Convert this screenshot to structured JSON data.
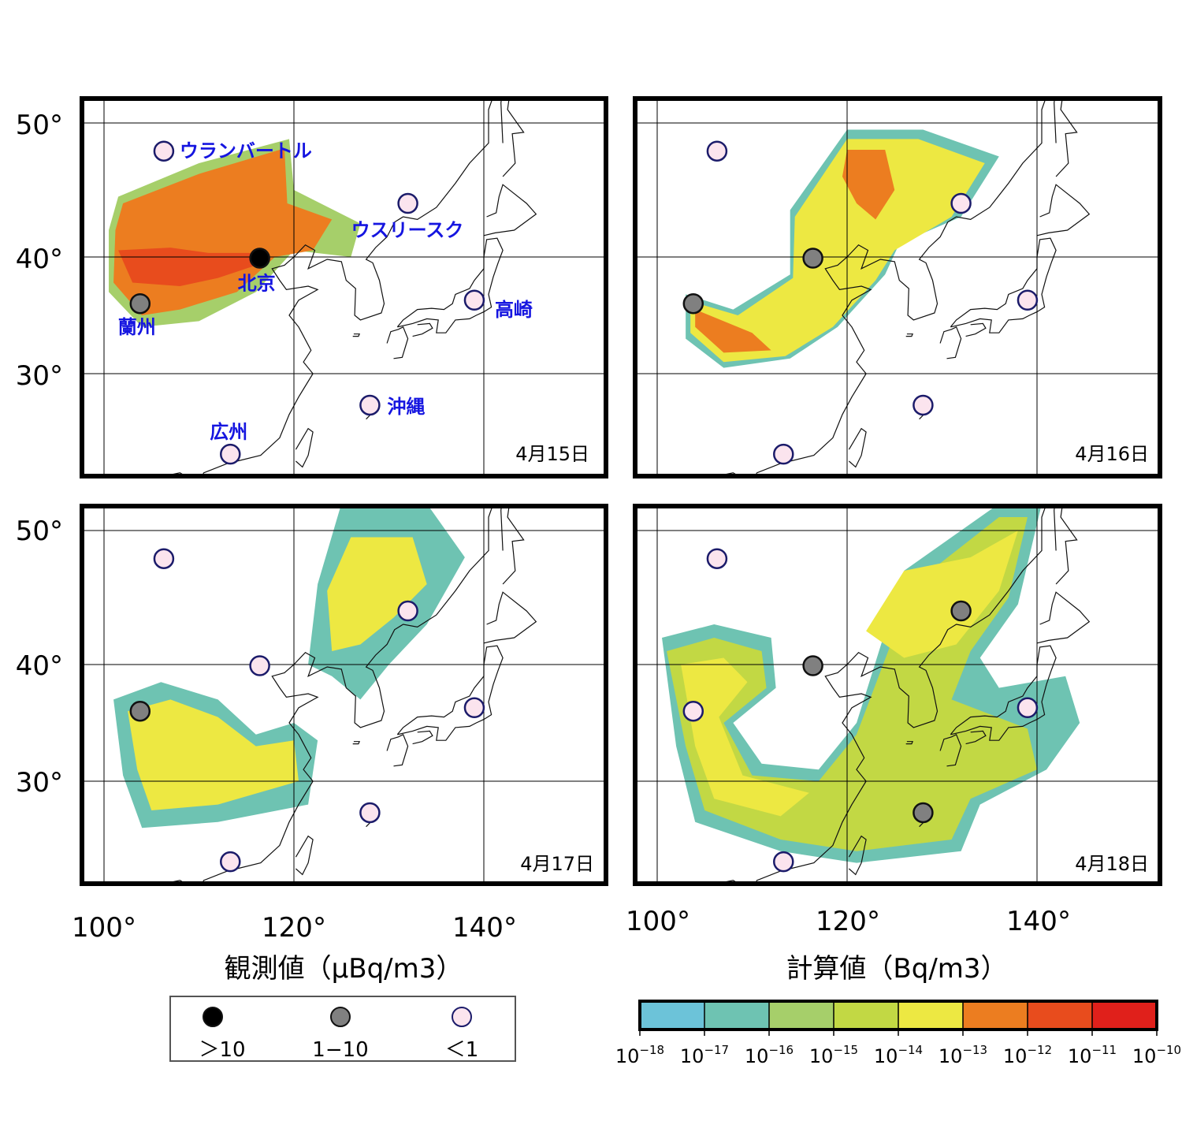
{
  "figure": {
    "y_axis_labels": [
      "50°",
      "40°",
      "30°"
    ],
    "x_axis_labels": [
      "100°",
      "120°",
      "140°"
    ],
    "left_xlabel": "観測値（μBq/m3）",
    "right_xlabel": "計算値（Bq/m3）"
  },
  "panels": [
    {
      "id": "p15",
      "date": "4月15日",
      "stations": [
        {
          "lon": 106.3,
          "lat": 47.9,
          "class": "<1",
          "label": "ウランバートル"
        },
        {
          "lon": 132.0,
          "lat": 44.0,
          "class": "<1",
          "label": "ウスリースク"
        },
        {
          "lon": 116.4,
          "lat": 39.9,
          "class": ">10",
          "label": "北京"
        },
        {
          "lon": 103.8,
          "lat": 36.0,
          "class": "1-10",
          "label": "蘭州"
        },
        {
          "lon": 139.0,
          "lat": 36.3,
          "class": "<1",
          "label": "高崎"
        },
        {
          "lon": 128.0,
          "lat": 27.3,
          "class": "<1",
          "label": "沖縄"
        },
        {
          "lon": 113.3,
          "lat": 23.1,
          "class": "<1",
          "label": "広州"
        }
      ]
    },
    {
      "id": "p16",
      "date": "4月16日",
      "stations": [
        {
          "lon": 106.3,
          "lat": 47.9,
          "class": "<1"
        },
        {
          "lon": 132.0,
          "lat": 44.0,
          "class": "<1"
        },
        {
          "lon": 116.4,
          "lat": 39.9,
          "class": "1-10"
        },
        {
          "lon": 103.8,
          "lat": 36.0,
          "class": "1-10"
        },
        {
          "lon": 139.0,
          "lat": 36.3,
          "class": "<1"
        },
        {
          "lon": 128.0,
          "lat": 27.3,
          "class": "<1"
        },
        {
          "lon": 113.3,
          "lat": 23.1,
          "class": "<1"
        }
      ]
    },
    {
      "id": "p17",
      "date": "4月17日",
      "stations": [
        {
          "lon": 106.3,
          "lat": 47.9,
          "class": "<1"
        },
        {
          "lon": 132.0,
          "lat": 44.0,
          "class": "<1"
        },
        {
          "lon": 116.4,
          "lat": 39.9,
          "class": "<1"
        },
        {
          "lon": 103.8,
          "lat": 36.0,
          "class": "1-10"
        },
        {
          "lon": 139.0,
          "lat": 36.3,
          "class": "<1"
        },
        {
          "lon": 128.0,
          "lat": 27.3,
          "class": "<1"
        },
        {
          "lon": 113.3,
          "lat": 23.1,
          "class": "<1"
        }
      ]
    },
    {
      "id": "p18",
      "date": "4月18日",
      "stations": [
        {
          "lon": 106.3,
          "lat": 47.9,
          "class": "<1"
        },
        {
          "lon": 132.0,
          "lat": 44.0,
          "class": "1-10"
        },
        {
          "lon": 116.4,
          "lat": 39.9,
          "class": "1-10"
        },
        {
          "lon": 103.8,
          "lat": 36.0,
          "class": "<1"
        },
        {
          "lon": 139.0,
          "lat": 36.3,
          "class": "<1"
        },
        {
          "lon": 128.0,
          "lat": 27.3,
          "class": "1-10"
        },
        {
          "lon": 113.3,
          "lat": 23.1,
          "class": "<1"
        }
      ]
    }
  ],
  "observation_legend": {
    "items": [
      {
        "class": ">10",
        "label": "＞10",
        "color": "#000000"
      },
      {
        "class": "1-10",
        "label": "1−10",
        "color": "#808080"
      },
      {
        "class": "<1",
        "label": "＜1",
        "color": "#fbe4ee"
      }
    ]
  },
  "colorbar": {
    "colors": [
      "#6cc3d9",
      "#6ec3b2",
      "#a6cf6a",
      "#c2d844",
      "#ede842",
      "#ec7d20",
      "#e84c1d",
      "#e0201b"
    ],
    "tick_labels": [
      "10−18",
      "10−17",
      "10−16",
      "10−15",
      "10−14",
      "10−13",
      "10−12",
      "10−11",
      "10−10"
    ]
  },
  "plumes": {
    "p15": [
      {
        "level": 2,
        "pts": [
          [
            101.5,
            44.5
          ],
          [
            110,
            47
          ],
          [
            119.5,
            48.8
          ],
          [
            120,
            45
          ],
          [
            127,
            42.5
          ],
          [
            126,
            40
          ],
          [
            120,
            40.5
          ],
          [
            116,
            37
          ],
          [
            110,
            34.5
          ],
          [
            104,
            34
          ],
          [
            100.5,
            37
          ],
          [
            100.5,
            42
          ]
        ]
      },
      {
        "level": 5,
        "pts": [
          [
            102,
            44
          ],
          [
            110,
            46.2
          ],
          [
            119,
            48.1
          ],
          [
            119.3,
            44
          ],
          [
            124,
            42.8
          ],
          [
            122,
            40.5
          ],
          [
            118,
            40
          ],
          [
            114,
            37
          ],
          [
            108,
            35.5
          ],
          [
            104,
            35
          ],
          [
            101,
            37.8
          ],
          [
            101.2,
            42
          ]
        ]
      },
      {
        "level": 6,
        "pts": [
          [
            101.5,
            40.5
          ],
          [
            107,
            40.7
          ],
          [
            111,
            40.3
          ],
          [
            116,
            40.3
          ],
          [
            116.8,
            39.5
          ],
          [
            112,
            38.2
          ],
          [
            108,
            37.5
          ],
          [
            103,
            37.8
          ]
        ]
      }
    ],
    "p16": [
      {
        "level": 1,
        "pts": [
          [
            103,
            36.8
          ],
          [
            108,
            35.5
          ],
          [
            114,
            38.5
          ],
          [
            114,
            43.5
          ],
          [
            120,
            49.5
          ],
          [
            128,
            49.5
          ],
          [
            136,
            47.5
          ],
          [
            132,
            43
          ],
          [
            125.5,
            41
          ],
          [
            124,
            38.5
          ],
          [
            119,
            34
          ],
          [
            114,
            31.3
          ],
          [
            107,
            30.5
          ],
          [
            103,
            33
          ]
        ]
      },
      {
        "level": 4,
        "pts": [
          [
            103.5,
            36.2
          ],
          [
            108.5,
            35
          ],
          [
            114.3,
            38.2
          ],
          [
            114.5,
            43
          ],
          [
            120,
            48.8
          ],
          [
            127.5,
            48.8
          ],
          [
            134.5,
            47
          ],
          [
            131,
            43
          ],
          [
            125,
            40.5
          ],
          [
            123,
            38
          ],
          [
            118.5,
            34
          ],
          [
            113.5,
            31.5
          ],
          [
            107,
            31
          ],
          [
            103.5,
            33.5
          ]
        ]
      },
      {
        "level": 5,
        "pts": [
          [
            120,
            48
          ],
          [
            124,
            48
          ],
          [
            125,
            45
          ],
          [
            123,
            42.8
          ],
          [
            121,
            44
          ],
          [
            119.5,
            46
          ]
        ]
      },
      {
        "level": 5,
        "pts": [
          [
            104,
            35.5
          ],
          [
            110,
            33.5
          ],
          [
            112,
            32
          ],
          [
            107,
            31.8
          ],
          [
            104,
            34
          ]
        ]
      }
    ],
    "p17": [
      {
        "level": 1,
        "pts": [
          [
            101,
            37
          ],
          [
            106,
            38.5
          ],
          [
            112,
            37
          ],
          [
            116,
            34
          ],
          [
            120,
            35
          ],
          [
            122.5,
            33.5
          ],
          [
            121.5,
            28
          ],
          [
            112,
            26.5
          ],
          [
            104,
            26
          ],
          [
            102,
            30.5
          ]
        ]
      },
      {
        "level": 4,
        "pts": [
          [
            102.5,
            36
          ],
          [
            107,
            37
          ],
          [
            112,
            35.5
          ],
          [
            116,
            33
          ],
          [
            120,
            33.5
          ],
          [
            120.5,
            30
          ],
          [
            112,
            28
          ],
          [
            105,
            27.5
          ],
          [
            103.5,
            31
          ]
        ]
      },
      {
        "level": 1,
        "pts": [
          [
            122.5,
            46
          ],
          [
            125,
            52
          ],
          [
            134,
            52
          ],
          [
            138,
            48
          ],
          [
            134,
            43
          ],
          [
            130,
            40
          ],
          [
            127,
            37
          ],
          [
            124,
            39
          ],
          [
            121.5,
            40
          ]
        ]
      },
      {
        "level": 4,
        "pts": [
          [
            123.5,
            45.5
          ],
          [
            126,
            49.5
          ],
          [
            132.5,
            49.5
          ],
          [
            134,
            46
          ],
          [
            130.5,
            43.5
          ],
          [
            127,
            41.5
          ],
          [
            124,
            41
          ]
        ]
      }
    ],
    "p18": [
      {
        "level": 1,
        "pts": [
          [
            100.5,
            42
          ],
          [
            106,
            43
          ],
          [
            112,
            42
          ],
          [
            112.5,
            38
          ],
          [
            108,
            35
          ],
          [
            111,
            31.5
          ],
          [
            117,
            31
          ],
          [
            121,
            35
          ],
          [
            126,
            47
          ],
          [
            136,
            52
          ],
          [
            140.5,
            52
          ],
          [
            138,
            44.5
          ],
          [
            134,
            40.5
          ],
          [
            136,
            38
          ],
          [
            143,
            39
          ],
          [
            144.5,
            35
          ],
          [
            141,
            31
          ],
          [
            134,
            28
          ],
          [
            132,
            24
          ],
          [
            121,
            23
          ],
          [
            113,
            24
          ],
          [
            104,
            26.5
          ],
          [
            102,
            33
          ]
        ]
      },
      {
        "level": 3,
        "pts": [
          [
            101,
            41
          ],
          [
            106,
            42
          ],
          [
            111,
            41
          ],
          [
            111.5,
            38
          ],
          [
            107,
            35
          ],
          [
            110,
            30.5
          ],
          [
            117,
            30
          ],
          [
            121,
            34
          ],
          [
            127,
            46
          ],
          [
            136,
            51
          ],
          [
            139,
            51
          ],
          [
            137,
            45
          ],
          [
            133,
            41
          ],
          [
            131,
            37
          ],
          [
            139,
            34.5
          ],
          [
            140,
            31
          ],
          [
            133,
            28.5
          ],
          [
            131,
            25
          ],
          [
            121,
            24
          ],
          [
            113,
            25
          ],
          [
            105,
            27.5
          ],
          [
            103,
            33
          ]
        ]
      },
      {
        "level": 4,
        "pts": [
          [
            102.5,
            40
          ],
          [
            107,
            40.5
          ],
          [
            109.5,
            38.5
          ],
          [
            106.5,
            35.5
          ],
          [
            109,
            30.5
          ],
          [
            116,
            29
          ],
          [
            113,
            27
          ],
          [
            106,
            28.5
          ],
          [
            104,
            33
          ]
        ]
      },
      {
        "level": 4,
        "pts": [
          [
            122,
            42.5
          ],
          [
            126,
            47
          ],
          [
            133,
            48
          ],
          [
            138,
            50
          ],
          [
            136,
            45.5
          ],
          [
            131.5,
            41.5
          ],
          [
            126,
            40.5
          ]
        ]
      }
    ]
  }
}
